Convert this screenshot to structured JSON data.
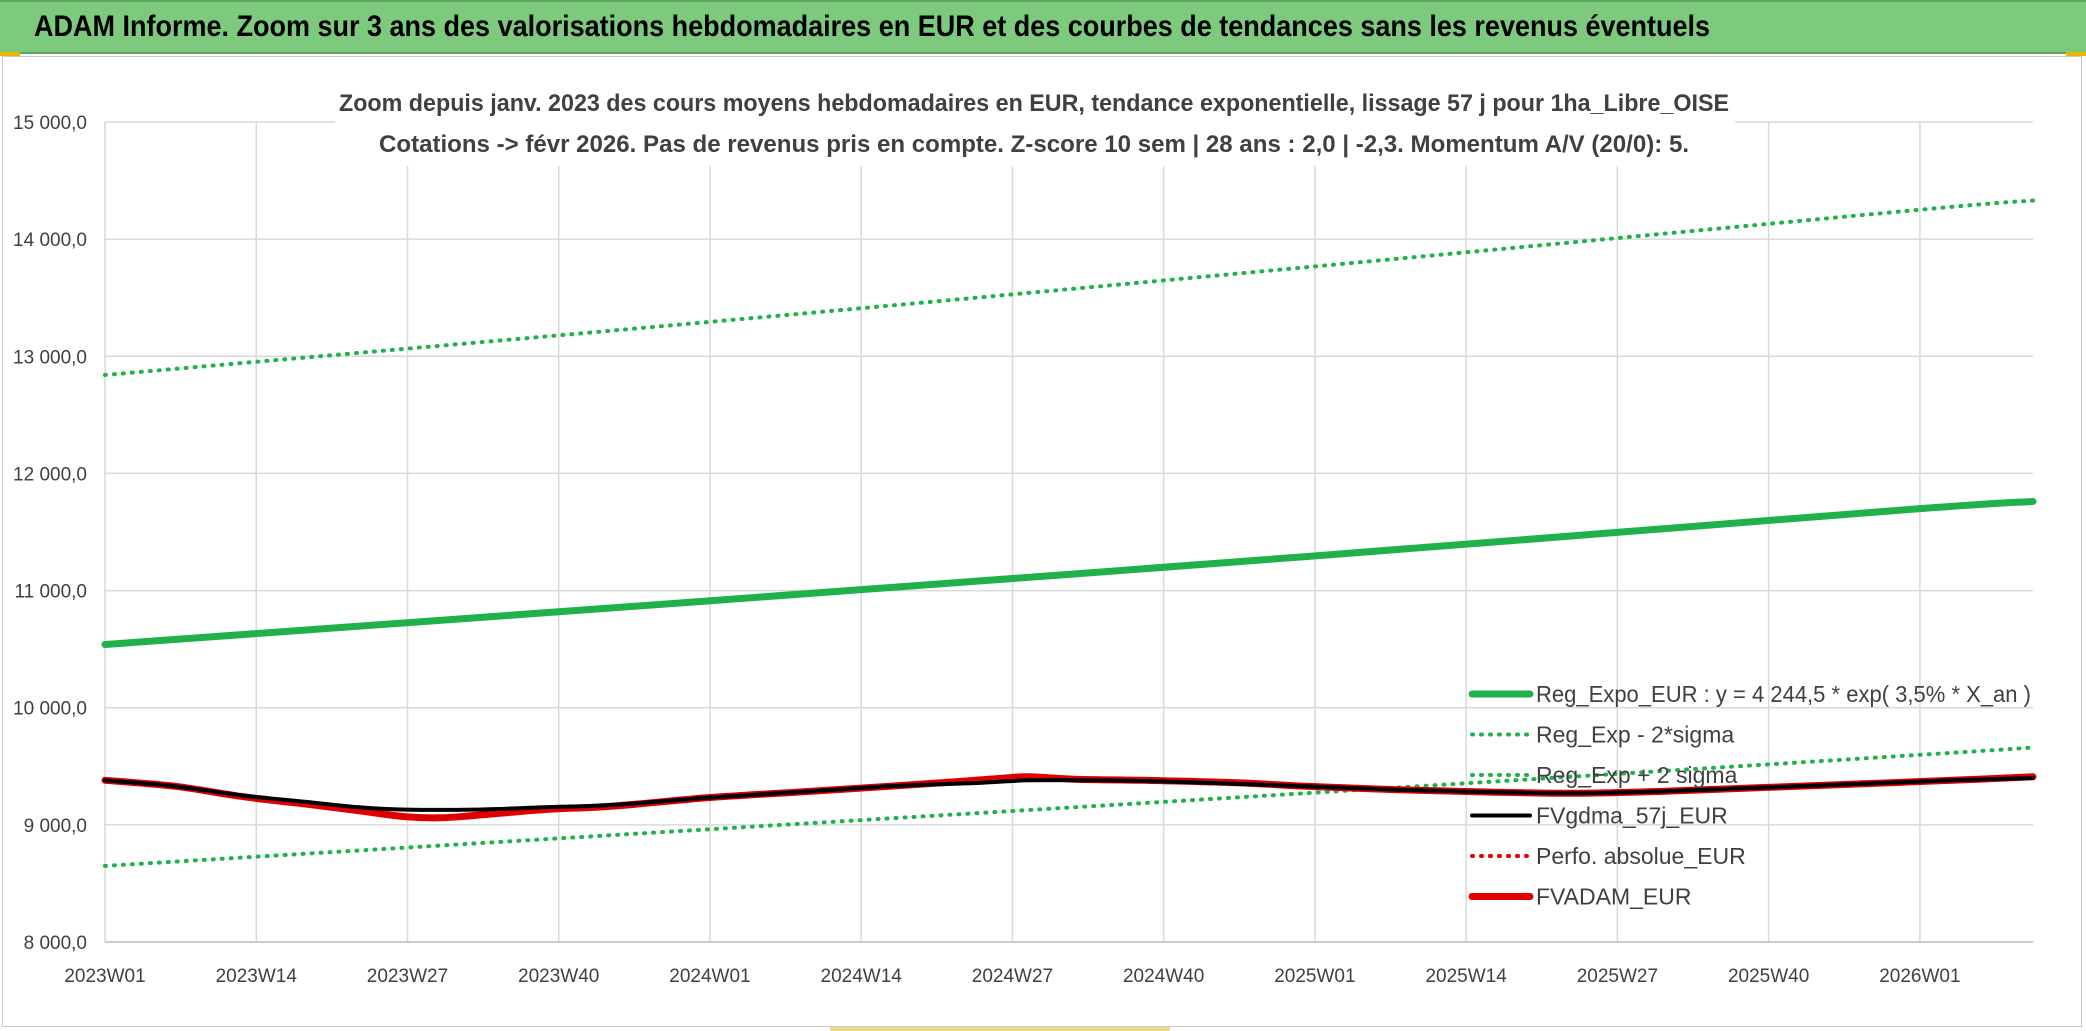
{
  "header": {
    "title": "ADAM Informe. Zoom sur 3 ans des valorisations hebdomadaires en EUR et des courbes de tendances sans les revenus éventuels"
  },
  "chart_data": {
    "type": "line",
    "title": "Zoom depuis janv. 2023 des cours moyens hebdomadaires en EUR, tendance exponentielle, lissage 57 j pour 1ha_Libre_OISE",
    "subtitle": "Cotations -> févr 2026. Pas de revenus pris en compte. Z-score 10 sem | 28 ans : 2,0 | -2,3. Momentum A/V (20/0): 5.",
    "ylim": [
      8000,
      15000
    ],
    "y_ticks": [
      "8 000,0",
      "9 000,0",
      "10 000,0",
      "11 000,0",
      "12 000,0",
      "13 000,0",
      "14 000,0",
      "15 000,0"
    ],
    "x_ticks": [
      "2023W01",
      "2023W14",
      "2023W27",
      "2023W40",
      "2024W01",
      "2024W14",
      "2024W27",
      "2024W40",
      "2025W01",
      "2025W14",
      "2025W27",
      "2025W40",
      "2026W01"
    ],
    "x_range_weeks": [
      0,
      167
    ],
    "grid": true,
    "legend_position": "bottom-right",
    "series": [
      {
        "name": "Reg_Expo_EUR : y = 4 244,5 * exp( 3,5% *  X_an )",
        "color": "#21b14b",
        "style": "solid-thick",
        "points": [
          [
            0,
            10540
          ],
          [
            52,
            10910
          ],
          [
            104,
            11290
          ],
          [
            156,
            11690
          ],
          [
            167,
            11760
          ]
        ]
      },
      {
        "name": "Reg_Exp - 2*sigma",
        "color": "#21b14b",
        "style": "dotted",
        "points": [
          [
            0,
            8650
          ],
          [
            52,
            8960
          ],
          [
            104,
            9270
          ],
          [
            156,
            9590
          ],
          [
            167,
            9660
          ]
        ]
      },
      {
        "name": "Reg_Exp + 2 sigma",
        "color": "#21b14b",
        "style": "dotted",
        "points": [
          [
            0,
            12840
          ],
          [
            52,
            13290
          ],
          [
            104,
            13760
          ],
          [
            156,
            14240
          ],
          [
            167,
            14330
          ]
        ]
      },
      {
        "name": "FVgdma_57j_EUR",
        "color": "#000000",
        "style": "solid",
        "points": [
          [
            0,
            9380
          ],
          [
            6,
            9330
          ],
          [
            12,
            9250
          ],
          [
            18,
            9190
          ],
          [
            22,
            9150
          ],
          [
            26,
            9130
          ],
          [
            32,
            9130
          ],
          [
            38,
            9150
          ],
          [
            44,
            9170
          ],
          [
            52,
            9230
          ],
          [
            60,
            9280
          ],
          [
            68,
            9330
          ],
          [
            76,
            9360
          ],
          [
            80,
            9380
          ],
          [
            86,
            9380
          ],
          [
            92,
            9370
          ],
          [
            98,
            9350
          ],
          [
            104,
            9330
          ],
          [
            112,
            9300
          ],
          [
            120,
            9280
          ],
          [
            128,
            9270
          ],
          [
            136,
            9290
          ],
          [
            144,
            9320
          ],
          [
            152,
            9350
          ],
          [
            160,
            9380
          ],
          [
            167,
            9400
          ]
        ]
      },
      {
        "name": "Perfo. absolue_EUR",
        "color": "#e00000",
        "style": "dotted",
        "points": [
          [
            0,
            9380
          ],
          [
            6,
            9330
          ],
          [
            12,
            9240
          ],
          [
            18,
            9170
          ],
          [
            22,
            9120
          ],
          [
            26,
            9070
          ],
          [
            29,
            9060
          ],
          [
            32,
            9080
          ],
          [
            38,
            9130
          ],
          [
            44,
            9160
          ],
          [
            52,
            9230
          ],
          [
            60,
            9280
          ],
          [
            68,
            9330
          ],
          [
            74,
            9370
          ],
          [
            78,
            9400
          ],
          [
            80,
            9410
          ],
          [
            84,
            9390
          ],
          [
            90,
            9380
          ],
          [
            98,
            9360
          ],
          [
            104,
            9330
          ],
          [
            112,
            9300
          ],
          [
            120,
            9280
          ],
          [
            128,
            9270
          ],
          [
            136,
            9290
          ],
          [
            144,
            9320
          ],
          [
            152,
            9350
          ],
          [
            160,
            9380
          ],
          [
            167,
            9410
          ]
        ]
      },
      {
        "name": "FVADAM_EUR",
        "color": "#e00000",
        "style": "solid-thick",
        "points": [
          [
            0,
            9380
          ],
          [
            6,
            9330
          ],
          [
            12,
            9240
          ],
          [
            18,
            9170
          ],
          [
            22,
            9120
          ],
          [
            26,
            9070
          ],
          [
            29,
            9060
          ],
          [
            32,
            9080
          ],
          [
            38,
            9130
          ],
          [
            44,
            9160
          ],
          [
            52,
            9230
          ],
          [
            60,
            9280
          ],
          [
            68,
            9330
          ],
          [
            74,
            9370
          ],
          [
            78,
            9400
          ],
          [
            80,
            9410
          ],
          [
            84,
            9390
          ],
          [
            90,
            9380
          ],
          [
            98,
            9360
          ],
          [
            104,
            9330
          ],
          [
            112,
            9300
          ],
          [
            120,
            9280
          ],
          [
            128,
            9270
          ],
          [
            136,
            9290
          ],
          [
            144,
            9320
          ],
          [
            152,
            9350
          ],
          [
            160,
            9380
          ],
          [
            167,
            9410
          ]
        ]
      }
    ]
  }
}
